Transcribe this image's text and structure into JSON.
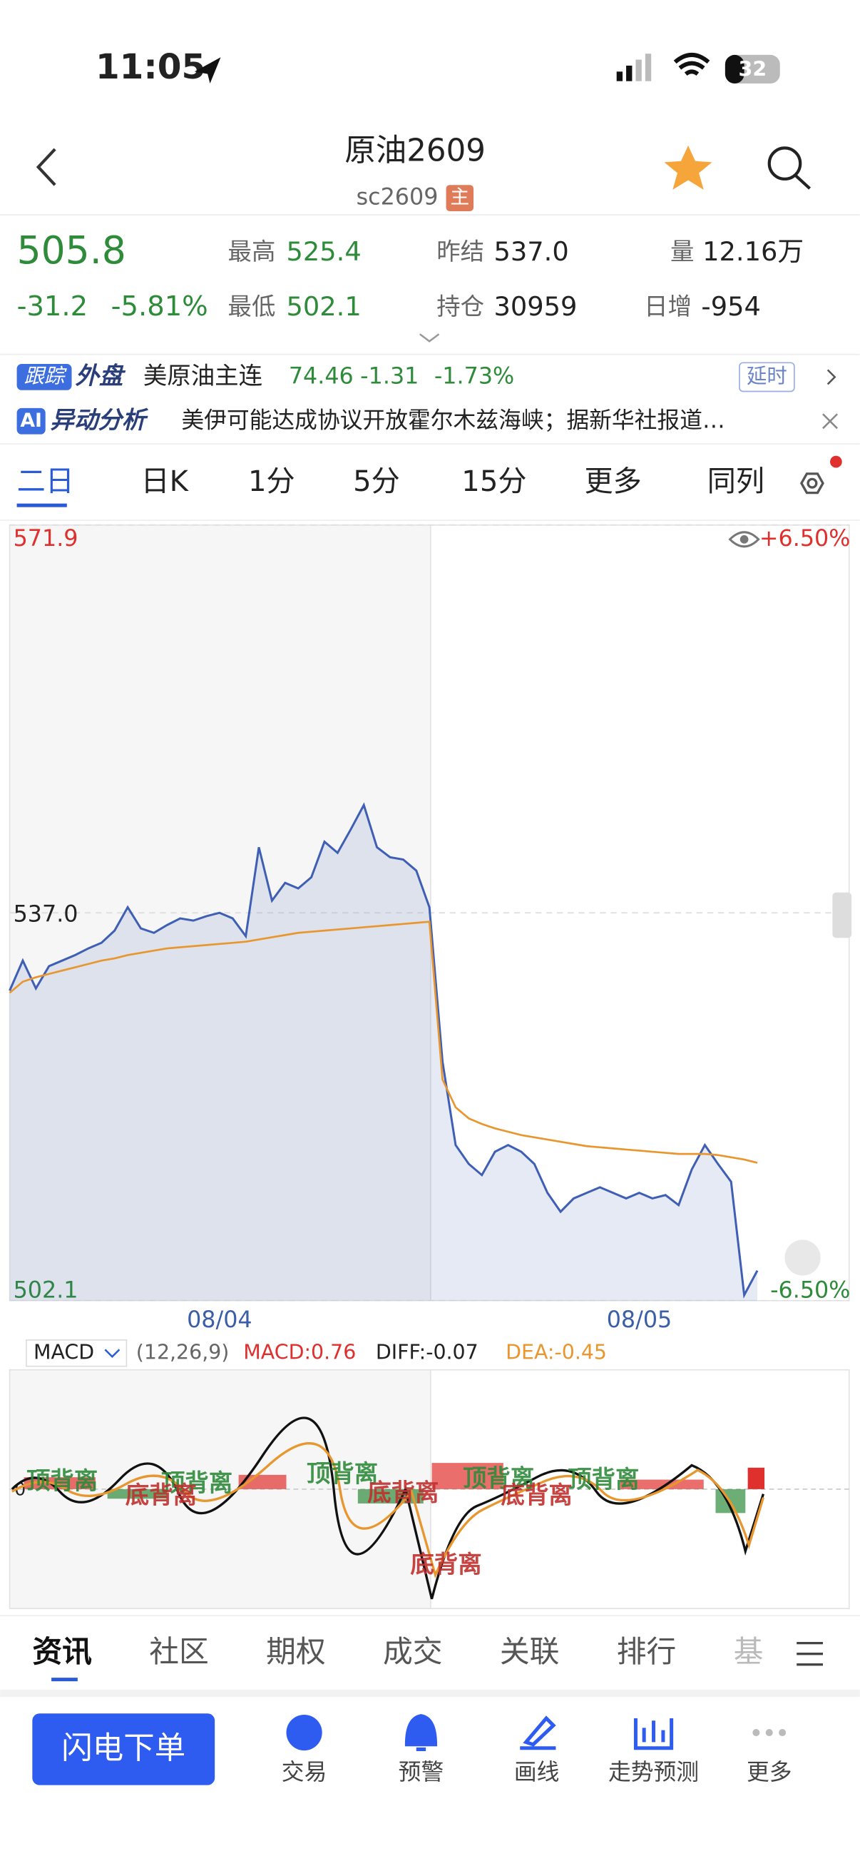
{
  "status": {
    "time": "11:05",
    "battery": "32"
  },
  "header": {
    "title": "原油2609",
    "code": "sc2609",
    "badge": "主"
  },
  "quote": {
    "price": "505.8",
    "change": "-31.2",
    "pct": "-5.81%",
    "high_label": "最高",
    "high": "525.4",
    "low_label": "最低",
    "low": "502.1",
    "prev_label": "昨结",
    "prev": "537.0",
    "oi_label": "持仓",
    "oi": "30959",
    "vol_label": "量",
    "vol": "12.16万",
    "inc_label": "日增",
    "inc": "-954"
  },
  "ticker": {
    "tag": "跟踪",
    "tag2": "外盘",
    "name": "美原油主连",
    "price": "74.46",
    "change": "-1.31",
    "pct": "-1.73%",
    "delay": "延时"
  },
  "ai": {
    "tag": "AI",
    "title": "异动分析",
    "text": "美伊可能达成协议开放霍尔木兹海峡；据新华社报道…"
  },
  "tabs": [
    "二日",
    "日K",
    "1分",
    "5分",
    "15分",
    "更多",
    "同列"
  ],
  "chart_data": {
    "type": "line",
    "ylim": [
      502.1,
      571.9
    ],
    "yticks": [
      502.1,
      {
        "value": 537.0,
        "label": "537.0"
      },
      571.9
    ],
    "grid": true,
    "upper_pct": "+6.50%",
    "lower_pct": "-6.50%",
    "categories": [
      null,
      null,
      null,
      null,
      null,
      null,
      null,
      null,
      null,
      null,
      null,
      null,
      null,
      null,
      null,
      null,
      "08/04",
      null,
      null,
      null,
      null,
      null,
      null,
      null,
      null,
      null,
      null,
      null,
      null,
      null,
      null,
      null,
      null,
      null,
      null,
      null,
      null,
      null,
      null,
      null,
      null,
      null,
      null,
      null,
      null,
      null,
      null,
      null,
      "08/05",
      null,
      null,
      null,
      null,
      null,
      null,
      null,
      null,
      null,
      null,
      null,
      null,
      null,
      null,
      null
    ],
    "series": [
      {
        "color": "#3f5fb5",
        "values": [
          530.0,
          532.7,
          530.2,
          532.2,
          532.7,
          533.2,
          533.8,
          534.3,
          535.4,
          537.5,
          535.6,
          535.2,
          535.9,
          536.5,
          536.3,
          536.7,
          537.0,
          536.5,
          534.9,
          542.9,
          538.1,
          539.7,
          539.2,
          540.2,
          543.4,
          542.4,
          544.5,
          546.7,
          542.9,
          542.0,
          541.8,
          540.8,
          537.5,
          523.6,
          516.1,
          514.4,
          513.4,
          515.5,
          516.1,
          515.5,
          514.4,
          511.8,
          510.1,
          511.3,
          511.8,
          512.3,
          511.8,
          511.3,
          511.8,
          511.3,
          511.6,
          510.7,
          513.9,
          516.1,
          514.4,
          512.8,
          502.6,
          504.8,
          null,
          null,
          null,
          null,
          null,
          null
        ]
      },
      {
        "color": "#e8962e",
        "values": [
          529.8,
          530.8,
          531.2,
          531.5,
          531.8,
          532.1,
          532.4,
          532.7,
          532.9,
          533.2,
          533.4,
          533.6,
          533.8,
          533.9,
          534.0,
          534.1,
          534.2,
          534.3,
          534.4,
          534.6,
          534.8,
          535.0,
          535.2,
          535.3,
          535.4,
          535.5,
          535.6,
          535.7,
          535.8,
          535.9,
          536.0,
          536.1,
          536.2,
          522.0,
          519.5,
          518.5,
          518.0,
          517.6,
          517.3,
          517.0,
          516.8,
          516.6,
          516.4,
          516.2,
          516.0,
          515.9,
          515.8,
          515.7,
          515.6,
          515.5,
          515.4,
          515.3,
          515.3,
          515.3,
          515.2,
          515.0,
          514.8,
          514.5,
          null,
          null,
          null,
          null,
          null,
          null
        ]
      }
    ]
  },
  "macd": {
    "selector": "MACD",
    "params": "(12,26,9)",
    "macd": "MACD:0.76",
    "diff": "DIFF:-0.07",
    "dea": "DEA:-0.45",
    "zero": "0",
    "annotations": [
      "顶背离",
      "顶背离",
      "顶背离",
      "顶背离",
      "顶背离",
      "底背离",
      "底背离",
      "底背离",
      "底背离"
    ]
  },
  "bottom_tabs": [
    "资讯",
    "社区",
    "期权",
    "成交",
    "关联",
    "排行",
    "基"
  ],
  "nav": {
    "button": "闪电下单",
    "items": [
      "交易",
      "预警",
      "画线",
      "走势预测",
      "更多"
    ]
  }
}
